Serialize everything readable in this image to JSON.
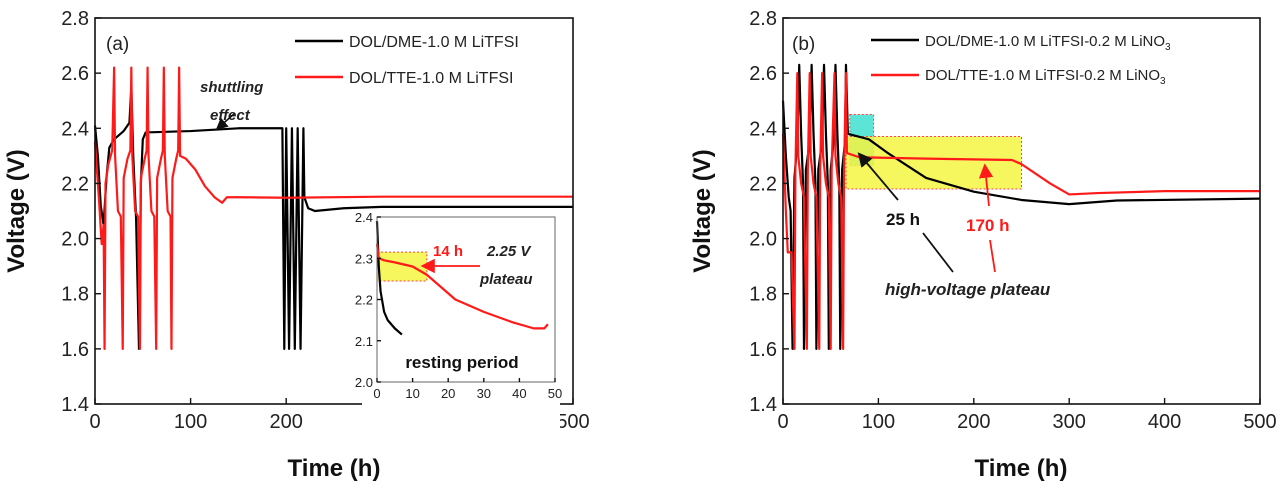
{
  "chart_data": [
    {
      "type": "line",
      "panel_label": "(a)",
      "xlabel": "Time (h)",
      "ylabel": "Voltage (V)",
      "xlim": [
        0,
        500
      ],
      "ylim": [
        1.4,
        2.8
      ],
      "xticks": [
        "0",
        "100",
        "200",
        "300",
        "400",
        "500"
      ],
      "yticks": [
        "1.4",
        "1.6",
        "1.8",
        "2.0",
        "2.2",
        "2.4",
        "2.6",
        "2.8"
      ],
      "grid": false,
      "legend_position": "top-right",
      "series": [
        {
          "name": "DOL/DME-1.0 M LiTFSI",
          "color": "#000000",
          "points": [
            [
              0,
              2.41
            ],
            [
              3,
              2.3
            ],
            [
              6,
              2.12
            ],
            [
              9,
              2.05
            ],
            [
              12,
              2.22
            ],
            [
              15,
              2.33
            ],
            [
              20,
              2.36
            ],
            [
              30,
              2.39
            ],
            [
              36,
              2.42
            ],
            [
              38,
              2.55
            ],
            [
              40,
              2.3
            ],
            [
              43,
              2.07
            ],
            [
              46,
              1.6
            ],
            [
              48,
              2.2
            ],
            [
              50,
              2.36
            ],
            [
              53,
              2.385
            ],
            [
              100,
              2.39
            ],
            [
              150,
              2.4
            ],
            [
              196,
              2.4
            ],
            [
              198,
              1.6
            ],
            [
              200,
              2.4
            ],
            [
              203,
              1.6
            ],
            [
              206,
              2.4
            ],
            [
              209,
              1.6
            ],
            [
              212,
              2.4
            ],
            [
              215,
              1.6
            ],
            [
              218,
              2.4
            ],
            [
              219,
              2.15
            ],
            [
              223,
              2.11
            ],
            [
              230,
              2.1
            ],
            [
              260,
              2.11
            ],
            [
              300,
              2.115
            ],
            [
              500,
              2.115
            ]
          ]
        },
        {
          "name": "DOL/TTE-1.0 M LiTFSI",
          "color": "#ff1a1a",
          "points": [
            [
              0,
              2.35
            ],
            [
              4,
              2.15
            ],
            [
              7,
              1.98
            ],
            [
              9,
              2.05
            ],
            [
              10,
              1.6
            ],
            [
              11,
              2.2
            ],
            [
              14,
              2.27
            ],
            [
              18,
              2.32
            ],
            [
              20,
              2.62
            ],
            [
              21,
              2.3
            ],
            [
              24,
              2.1
            ],
            [
              27,
              2.08
            ],
            [
              29,
              1.6
            ],
            [
              30,
              2.22
            ],
            [
              34,
              2.29
            ],
            [
              37,
              2.32
            ],
            [
              38,
              2.62
            ],
            [
              39,
              2.3
            ],
            [
              42,
              2.1
            ],
            [
              45,
              2.08
            ],
            [
              47,
              1.6
            ],
            [
              48,
              2.22
            ],
            [
              52,
              2.29
            ],
            [
              54,
              2.32
            ],
            [
              55,
              2.62
            ],
            [
              56,
              2.3
            ],
            [
              59,
              2.1
            ],
            [
              62,
              2.08
            ],
            [
              64,
              1.6
            ],
            [
              65,
              2.22
            ],
            [
              69,
              2.29
            ],
            [
              71,
              2.32
            ],
            [
              72,
              2.62
            ],
            [
              73,
              2.3
            ],
            [
              76,
              2.1
            ],
            [
              79,
              2.08
            ],
            [
              80,
              1.6
            ],
            [
              81,
              2.22
            ],
            [
              85,
              2.29
            ],
            [
              87,
              2.32
            ],
            [
              88,
              2.62
            ],
            [
              89,
              2.3
            ],
            [
              95,
              2.29
            ],
            [
              105,
              2.25
            ],
            [
              115,
              2.19
            ],
            [
              125,
              2.15
            ],
            [
              133,
              2.13
            ],
            [
              138,
              2.15
            ],
            [
              150,
              2.15
            ],
            [
              200,
              2.148
            ],
            [
              300,
              2.152
            ],
            [
              500,
              2.152
            ]
          ]
        }
      ],
      "annotations": [
        "shuttling",
        "effect"
      ],
      "inset": {
        "xlim": [
          0,
          50
        ],
        "ylim": [
          2.0,
          2.4
        ],
        "xticks": [
          "0",
          "10",
          "20",
          "30",
          "40",
          "50"
        ],
        "yticks": [
          "2.0",
          "2.1",
          "2.2",
          "2.3",
          "2.4"
        ],
        "label": "resting period",
        "highlight_color": "#f5f542",
        "highlight_range": {
          "x": [
            0,
            14
          ],
          "y": [
            2.245,
            2.315
          ]
        },
        "annotation_hours": "14 h",
        "annotation_voltage": "2.25 V",
        "annotation_plateau": "plateau",
        "series": [
          {
            "color": "#000000",
            "points": [
              [
                0,
                2.39
              ],
              [
                0.5,
                2.28
              ],
              [
                1,
                2.22
              ],
              [
                2,
                2.17
              ],
              [
                3,
                2.15
              ],
              [
                5,
                2.13
              ],
              [
                7,
                2.115
              ]
            ]
          },
          {
            "color": "#ff1a1a",
            "points": [
              [
                0,
                2.335
              ],
              [
                0.5,
                2.3
              ],
              [
                2,
                2.295
              ],
              [
                5,
                2.29
              ],
              [
                10,
                2.28
              ],
              [
                14,
                2.26
              ],
              [
                18,
                2.23
              ],
              [
                22,
                2.2
              ],
              [
                30,
                2.17
              ],
              [
                38,
                2.145
              ],
              [
                44,
                2.13
              ],
              [
                47,
                2.13
              ],
              [
                48,
                2.14
              ]
            ]
          }
        ]
      }
    },
    {
      "type": "line",
      "panel_label": "(b)",
      "xlabel": "Time (h)",
      "ylabel": "Voltage (V)",
      "xlim": [
        0,
        500
      ],
      "ylim": [
        1.4,
        2.8
      ],
      "xticks": [
        "0",
        "100",
        "200",
        "300",
        "400",
        "500"
      ],
      "yticks": [
        "1.4",
        "1.6",
        "1.8",
        "2.0",
        "2.2",
        "2.4",
        "2.6",
        "2.8"
      ],
      "grid": false,
      "legend_position": "top-right",
      "series": [
        {
          "name": "DOL/DME-1.0 M LiTFSI-0.2 M LiNO",
          "subscript": "3",
          "color": "#000000",
          "points": [
            [
              0,
              2.5
            ],
            [
              3,
              2.3
            ],
            [
              6,
              2.15
            ],
            [
              8,
              2.1
            ],
            [
              10,
              1.6
            ],
            [
              12,
              2.22
            ],
            [
              15,
              2.35
            ],
            [
              17,
              2.63
            ],
            [
              19,
              2.38
            ],
            [
              21,
              2.2
            ],
            [
              22,
              1.6
            ],
            [
              24,
              2.25
            ],
            [
              28,
              2.35
            ],
            [
              30,
              2.63
            ],
            [
              32,
              2.38
            ],
            [
              34,
              2.2
            ],
            [
              35,
              1.6
            ],
            [
              37,
              2.25
            ],
            [
              41,
              2.35
            ],
            [
              43,
              2.63
            ],
            [
              45,
              2.38
            ],
            [
              47,
              2.2
            ],
            [
              48,
              1.6
            ],
            [
              50,
              2.25
            ],
            [
              53,
              2.35
            ],
            [
              55,
              2.63
            ],
            [
              57,
              2.38
            ],
            [
              59,
              2.2
            ],
            [
              60,
              1.6
            ],
            [
              62,
              2.25
            ],
            [
              65,
              2.35
            ],
            [
              66,
              2.63
            ],
            [
              68,
              2.38
            ],
            [
              90,
              2.36
            ],
            [
              110,
              2.31
            ],
            [
              150,
              2.22
            ],
            [
              200,
              2.17
            ],
            [
              250,
              2.14
            ],
            [
              300,
              2.125
            ],
            [
              350,
              2.138
            ],
            [
              500,
              2.145
            ]
          ]
        },
        {
          "name": "DOL/TTE-1.0 M LiTFSI-0.2 M LiNO",
          "subscript": "3",
          "color": "#ff1a1a",
          "points": [
            [
              0,
              2.38
            ],
            [
              3,
              2.1
            ],
            [
              5,
              1.95
            ],
            [
              9,
              1.95
            ],
            [
              12,
              1.6
            ],
            [
              13,
              2.25
            ],
            [
              15,
              2.6
            ],
            [
              16,
              2.3
            ],
            [
              19,
              2.2
            ],
            [
              22,
              2.15
            ],
            [
              25,
              1.6
            ],
            [
              26,
              2.25
            ],
            [
              28,
              2.6
            ],
            [
              29,
              2.3
            ],
            [
              32,
              2.2
            ],
            [
              35,
              2.15
            ],
            [
              38,
              1.6
            ],
            [
              39,
              2.25
            ],
            [
              41,
              2.6
            ],
            [
              42,
              2.3
            ],
            [
              45,
              2.2
            ],
            [
              48,
              2.15
            ],
            [
              50,
              1.6
            ],
            [
              51,
              2.25
            ],
            [
              54,
              2.6
            ],
            [
              55,
              2.3
            ],
            [
              58,
              2.2
            ],
            [
              61,
              2.15
            ],
            [
              63,
              1.6
            ],
            [
              64,
              2.25
            ],
            [
              66,
              2.6
            ],
            [
              67,
              2.31
            ],
            [
              80,
              2.295
            ],
            [
              150,
              2.29
            ],
            [
              240,
              2.285
            ],
            [
              250,
              2.27
            ],
            [
              280,
              2.2
            ],
            [
              300,
              2.16
            ],
            [
              330,
              2.165
            ],
            [
              400,
              2.172
            ],
            [
              500,
              2.172
            ]
          ]
        }
      ],
      "highlights": [
        {
          "color": "#40e0d0",
          "x": [
            70,
            95
          ],
          "y": [
            2.265,
            2.45
          ]
        },
        {
          "color": "#f5f542",
          "x": [
            66,
            250
          ],
          "y": [
            2.18,
            2.37
          ]
        }
      ],
      "annotations": {
        "black_duration": "25 h",
        "red_duration": "170 h",
        "label": "high-voltage plateau"
      }
    }
  ]
}
